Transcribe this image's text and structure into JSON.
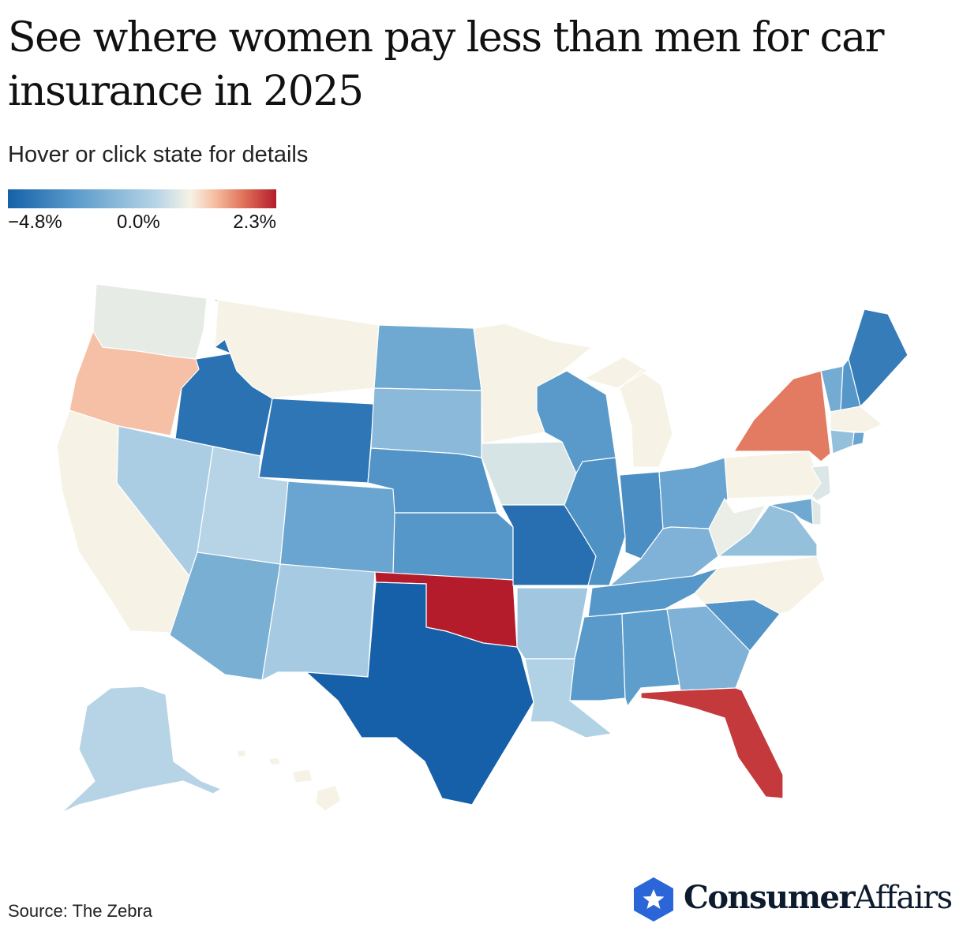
{
  "title": "See where women pay less than men for car insurance in 2025",
  "subtitle": "Hover or click state for details",
  "legend": {
    "min_label": "−4.8%",
    "mid_label": "0.0%",
    "max_label": "2.3%",
    "min_value": -4.8,
    "mid_value": 0.0,
    "max_value": 2.3
  },
  "colors": {
    "strong_negative": "#1560a8",
    "mid_negative": "#5a9bcb",
    "light_negative": "#b6d4e6",
    "neutral": "#f6f3e6",
    "light_positive": "#f5b89b",
    "mid_positive": "#e07058",
    "strong_positive": "#b51c2b"
  },
  "source": "Source: The Zebra",
  "logo": {
    "bold_text": "Consumer",
    "regular_text": "Affairs",
    "icon": "star-hexagon-icon"
  },
  "states": [
    {
      "name": "Washington",
      "value": -0.3
    },
    {
      "name": "Oregon",
      "value": 0.8
    },
    {
      "name": "California",
      "value": 0.0
    },
    {
      "name": "Idaho",
      "value": -4.2
    },
    {
      "name": "Nevada",
      "value": -1.4
    },
    {
      "name": "Utah",
      "value": -1.2
    },
    {
      "name": "Arizona",
      "value": -2.3
    },
    {
      "name": "Montana",
      "value": 0.0
    },
    {
      "name": "Wyoming",
      "value": -4.1
    },
    {
      "name": "Colorado",
      "value": -2.6
    },
    {
      "name": "New Mexico",
      "value": -1.5
    },
    {
      "name": "North Dakota",
      "value": -2.5
    },
    {
      "name": "South Dakota",
      "value": -2.0
    },
    {
      "name": "Nebraska",
      "value": -3.1
    },
    {
      "name": "Kansas",
      "value": -3.0
    },
    {
      "name": "Oklahoma",
      "value": 2.3
    },
    {
      "name": "Texas",
      "value": -4.8
    },
    {
      "name": "Minnesota",
      "value": 0.0
    },
    {
      "name": "Iowa",
      "value": -0.6
    },
    {
      "name": "Missouri",
      "value": -4.3
    },
    {
      "name": "Arkansas",
      "value": -1.6
    },
    {
      "name": "Louisiana",
      "value": -1.3
    },
    {
      "name": "Wisconsin",
      "value": -2.9
    },
    {
      "name": "Illinois",
      "value": -3.2
    },
    {
      "name": "Michigan",
      "value": 0.0
    },
    {
      "name": "Indiana",
      "value": -3.3
    },
    {
      "name": "Ohio",
      "value": -2.6
    },
    {
      "name": "Kentucky",
      "value": -2.2
    },
    {
      "name": "Tennessee",
      "value": -3.0
    },
    {
      "name": "Mississippi",
      "value": -2.9
    },
    {
      "name": "Alabama",
      "value": -2.8
    },
    {
      "name": "Georgia",
      "value": -2.2
    },
    {
      "name": "Florida",
      "value": 2.1
    },
    {
      "name": "South Carolina",
      "value": -3.1
    },
    {
      "name": "North Carolina",
      "value": 0.0
    },
    {
      "name": "Virginia",
      "value": -1.8
    },
    {
      "name": "West Virginia",
      "value": -0.2
    },
    {
      "name": "Pennsylvania",
      "value": 0.0
    },
    {
      "name": "New York",
      "value": 1.6
    },
    {
      "name": "Vermont",
      "value": -2.4
    },
    {
      "name": "New Hampshire",
      "value": -3.0
    },
    {
      "name": "Maine",
      "value": -3.9
    },
    {
      "name": "Massachusetts",
      "value": 0.0
    },
    {
      "name": "Connecticut",
      "value": -1.8
    },
    {
      "name": "Rhode Island",
      "value": -2.6
    },
    {
      "name": "New Jersey",
      "value": -0.5
    },
    {
      "name": "Delaware",
      "value": -0.4
    },
    {
      "name": "Maryland",
      "value": -2.5
    },
    {
      "name": "Alaska",
      "value": -1.2
    },
    {
      "name": "Hawaii",
      "value": 0.0
    }
  ]
}
